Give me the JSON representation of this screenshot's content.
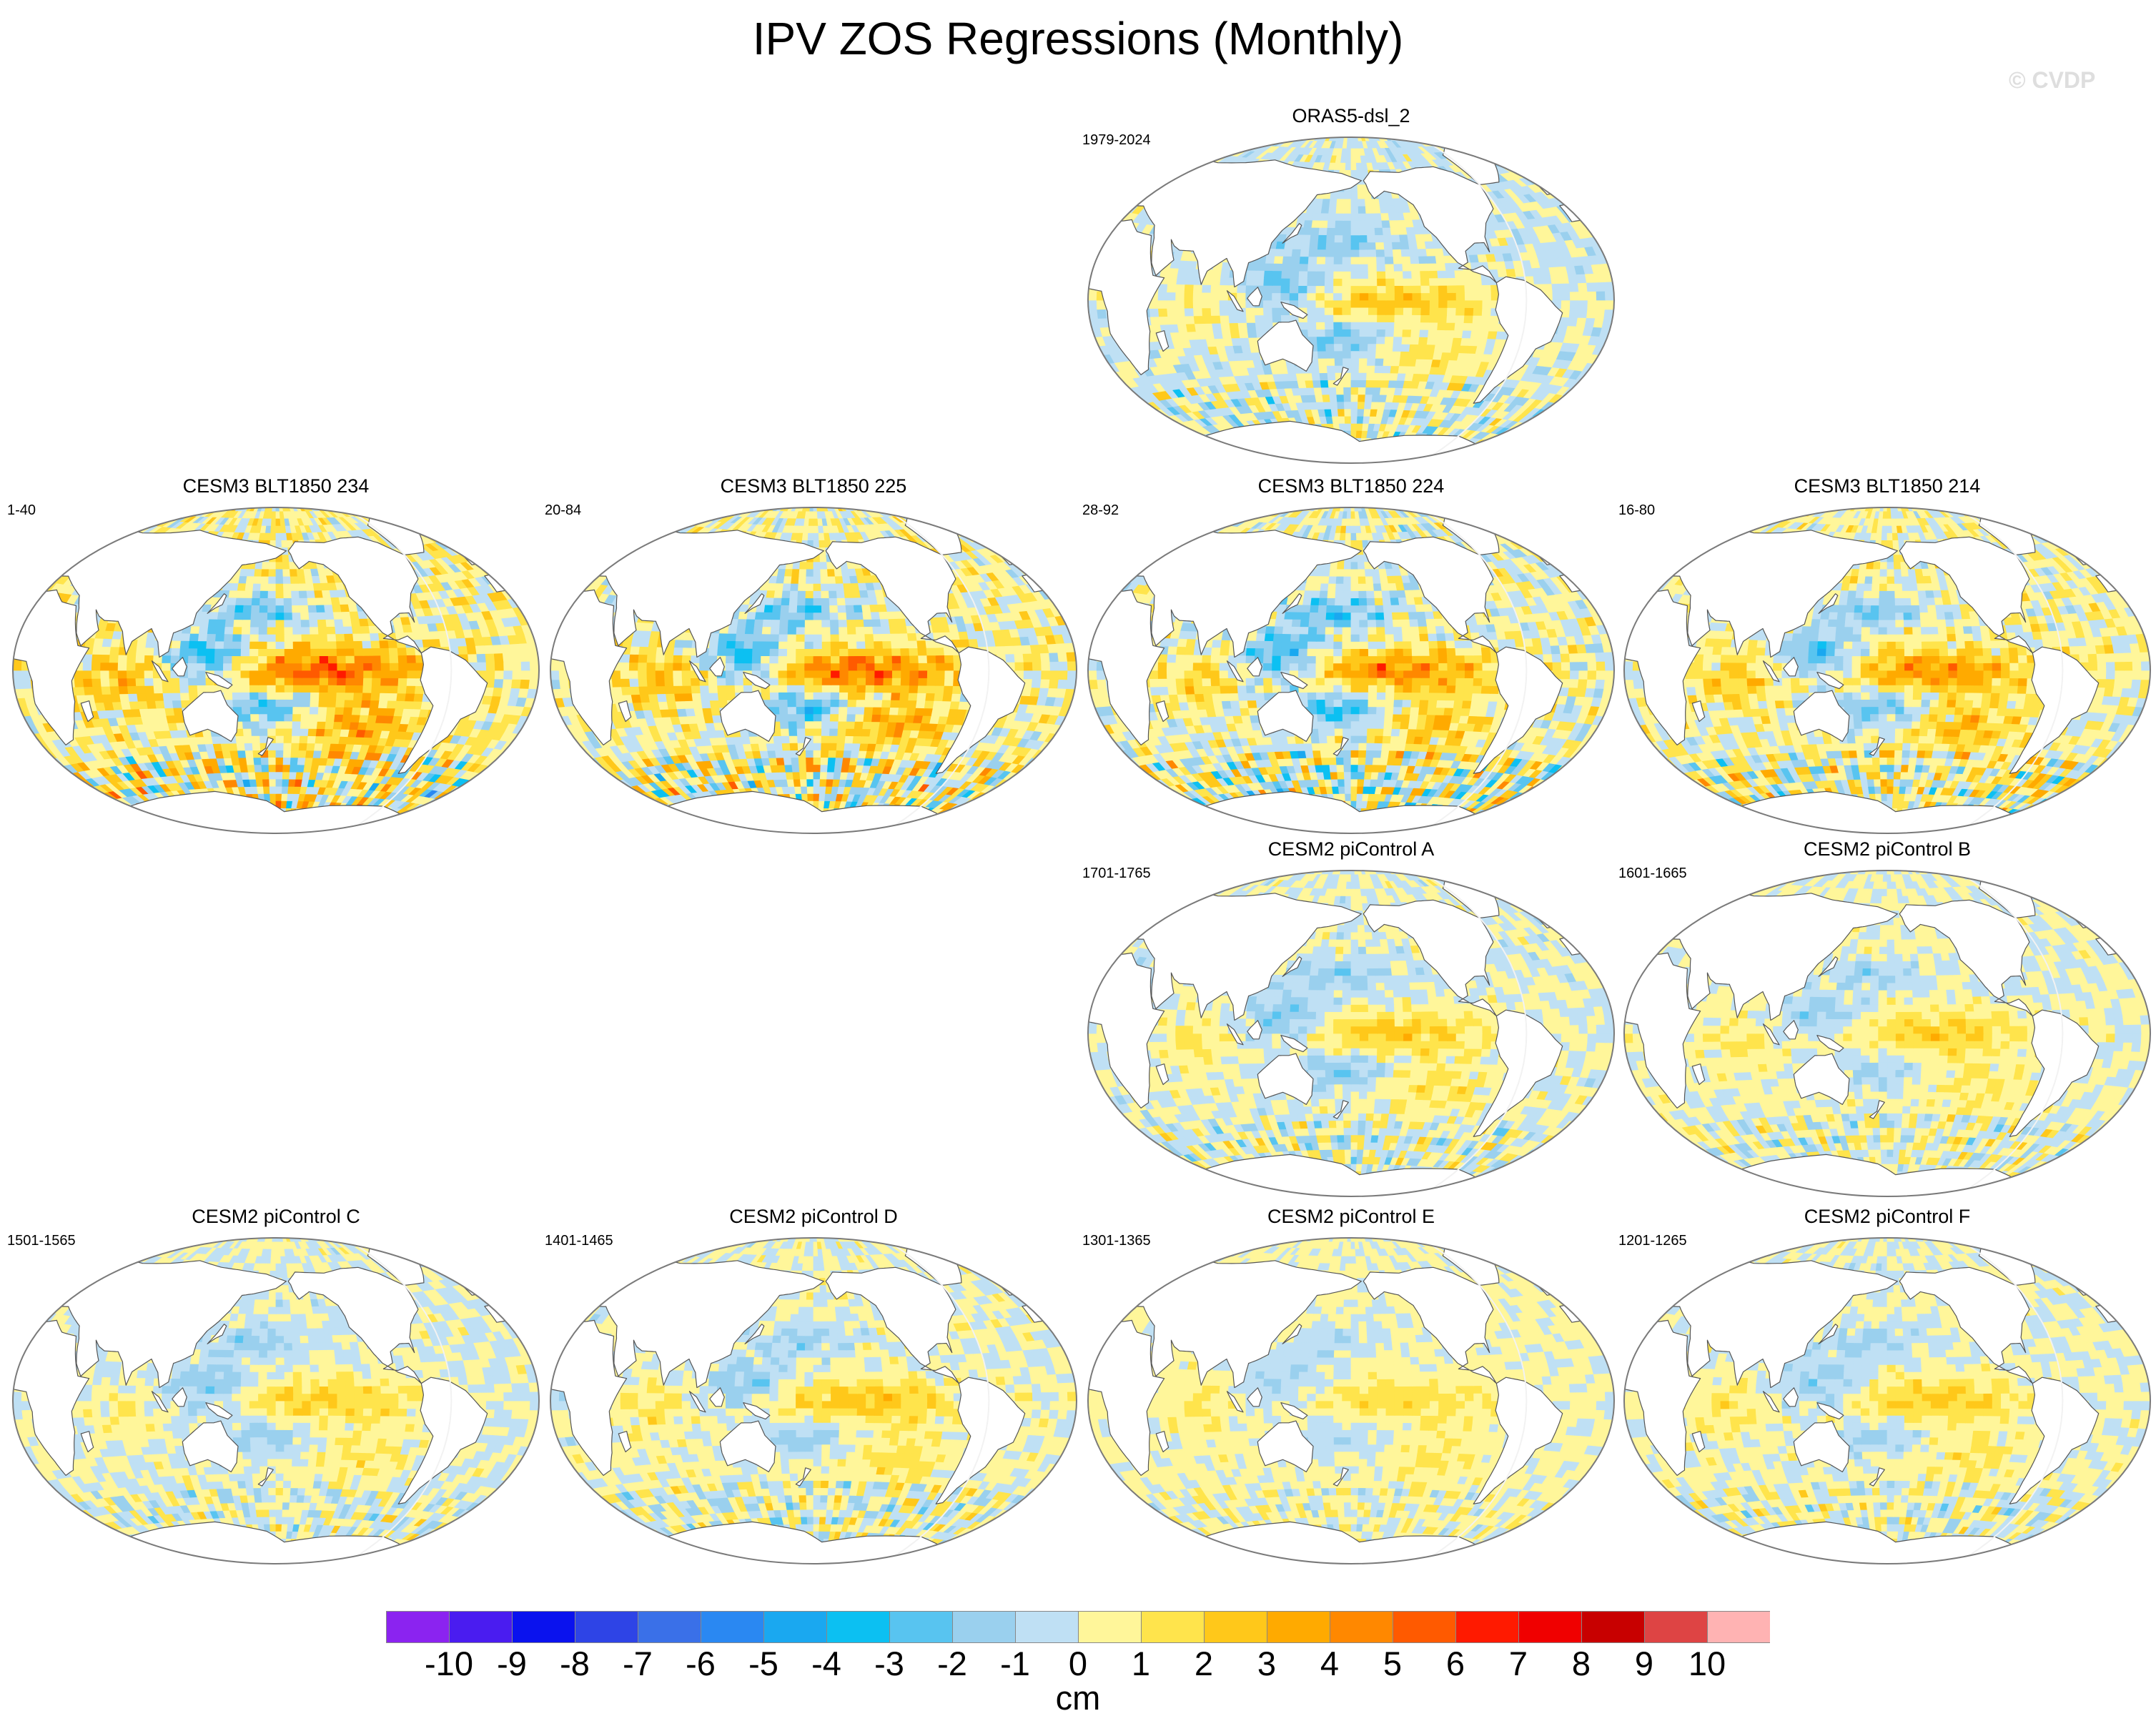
{
  "title": "IPV ZOS Regressions (Monthly)",
  "watermark": "© CVDP",
  "colors": {
    "land": "#ffffff",
    "coast": "#555555",
    "outline": "#7a7a7a",
    "meridian": "#f2f2f2",
    "colormap": [
      "#8b23f0",
      "#4a1cf0",
      "#0a12ee",
      "#2e44e6",
      "#3a70e8",
      "#2a88f2",
      "#1aa8f0",
      "#0cc0f2",
      "#58c4f0",
      "#9ad0ee",
      "#bfe0f4",
      "#fff69a",
      "#ffe44c",
      "#ffc81a",
      "#ffaa00",
      "#ff8800",
      "#ff5a00",
      "#ff1a00",
      "#f00000",
      "#c80000",
      "#de4444",
      "#ffb3b3"
    ]
  },
  "panels": [
    {
      "title": "ORAS5-dsl_2",
      "years": "1979-2024",
      "bias": -0.2,
      "amp": 1.0,
      "seed": 3
    },
    {
      "title": "CESM3 BLT1850 234",
      "years": "1-40",
      "bias": 0.6,
      "amp": 1.8,
      "seed": 7
    },
    {
      "title": "CESM3 BLT1850 225",
      "years": "20-84",
      "bias": 0.4,
      "amp": 1.7,
      "seed": 11
    },
    {
      "title": "CESM3 BLT1850 224",
      "years": "28-92",
      "bias": 0.1,
      "amp": 1.6,
      "seed": 13
    },
    {
      "title": "CESM3 BLT1850 214",
      "years": "16-80",
      "bias": 0.4,
      "amp": 1.4,
      "seed": 17
    },
    {
      "title": "CESM2 piControl A",
      "years": "1701-1765",
      "bias": 0.0,
      "amp": 0.9,
      "seed": 19
    },
    {
      "title": "CESM2 piControl B",
      "years": "1601-1665",
      "bias": 0.1,
      "amp": 0.8,
      "seed": 23
    },
    {
      "title": "CESM2 piControl C",
      "years": "1501-1565",
      "bias": 0.0,
      "amp": 0.8,
      "seed": 29
    },
    {
      "title": "CESM2 piControl D",
      "years": "1401-1465",
      "bias": 0.1,
      "amp": 0.9,
      "seed": 31
    },
    {
      "title": "CESM2 piControl E",
      "years": "1301-1365",
      "bias": 0.2,
      "amp": 0.6,
      "seed": 37
    },
    {
      "title": "CESM2 piControl F",
      "years": "1201-1265",
      "bias": 0.1,
      "amp": 0.8,
      "seed": 41
    }
  ],
  "colorbar": {
    "units": "cm",
    "ticks": [
      "-10",
      "-9",
      "-8",
      "-7",
      "-6",
      "-5",
      "-4",
      "-3",
      "-2",
      "-1",
      "0",
      "1",
      "2",
      "3",
      "4",
      "5",
      "6",
      "7",
      "8",
      "9",
      "10"
    ]
  }
}
